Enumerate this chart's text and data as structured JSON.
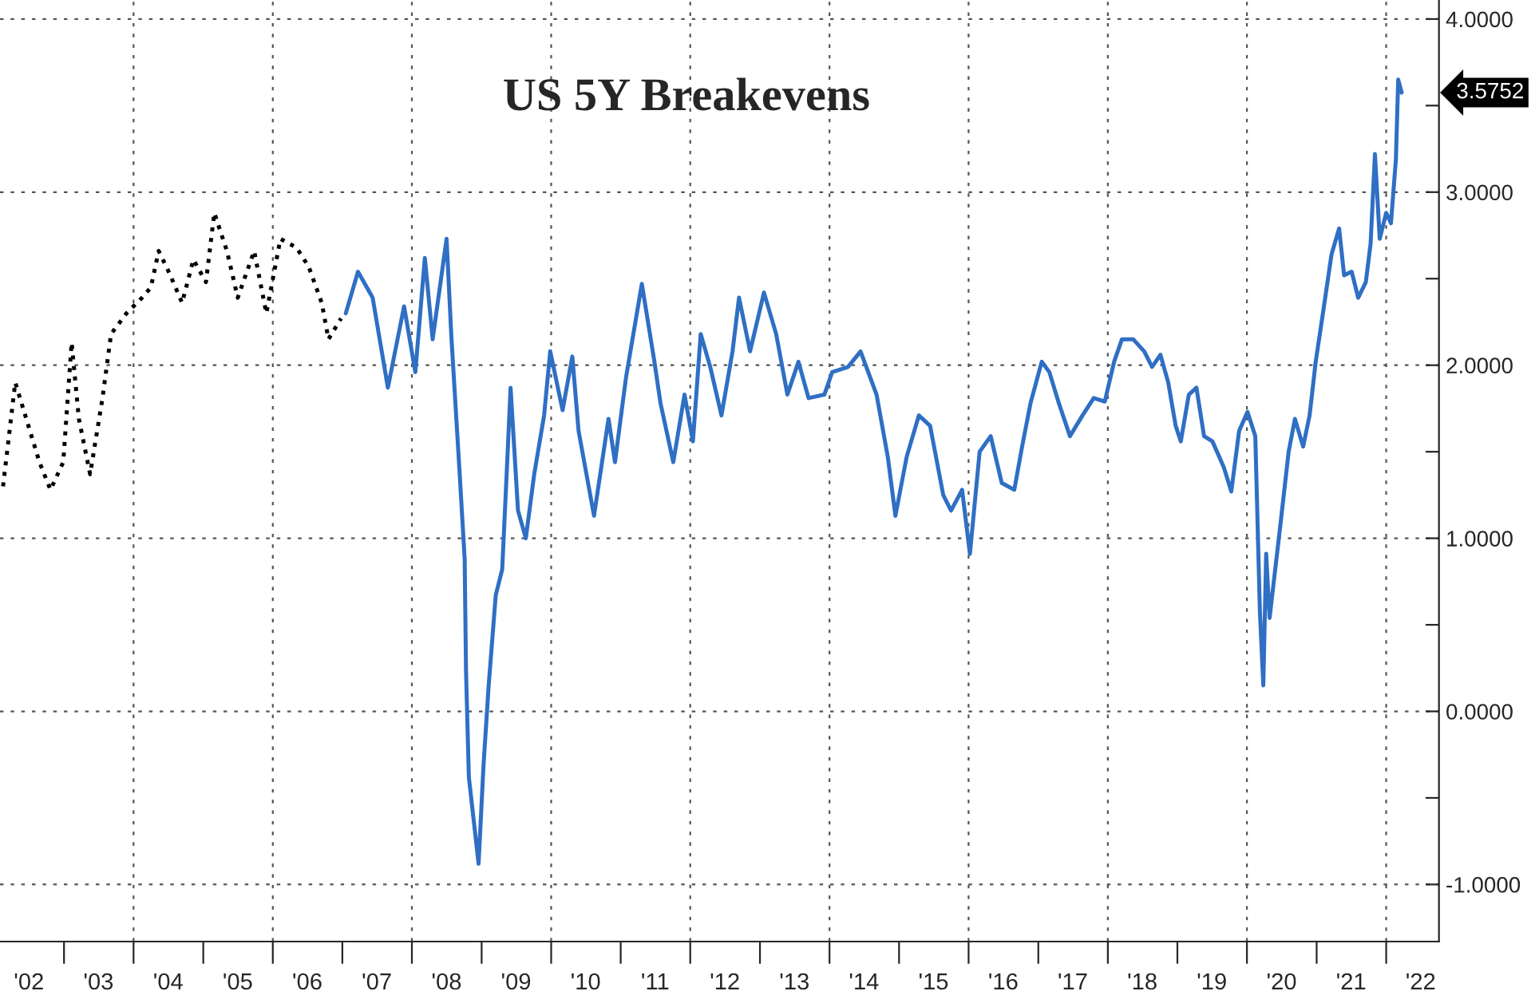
{
  "chart_data": {
    "type": "line",
    "title": "US 5Y Breakevens",
    "series": [
      {
        "color": "#000000",
        "line_style": "dotted",
        "x": [
          "2002-02-15",
          "2002-04-20",
          "2002-08-25",
          "2002-10-22",
          "2002-12-28",
          "2003-02-10",
          "2003-03-20",
          "2003-05-18",
          "2003-07-22",
          "2003-09-05",
          "2003-11-25",
          "2004-02-15",
          "2004-04-01",
          "2004-05-12",
          "2004-07-08",
          "2004-09-12",
          "2004-11-10",
          "2005-01-15",
          "2005-02-28",
          "2005-05-05",
          "2005-07-01",
          "2005-09-25",
          "2005-11-28",
          "2006-02-10",
          "2006-05-05",
          "2006-07-08",
          "2006-09-15",
          "2006-10-20",
          "2006-12-25"
        ],
        "values": [
          1.3,
          1.9,
          1.44,
          1.28,
          1.44,
          2.13,
          1.69,
          1.37,
          1.81,
          2.18,
          2.3,
          2.39,
          2.45,
          2.66,
          2.53,
          2.36,
          2.61,
          2.48,
          2.88,
          2.66,
          2.39,
          2.66,
          2.3,
          2.73,
          2.68,
          2.57,
          2.36,
          2.15,
          2.27
        ]
      },
      {
        "color": "#2f6fc4",
        "line_style": "solid",
        "x": [
          "2007-01-19",
          "2007-03-24",
          "2007-06-09",
          "2007-08-28",
          "2007-11-21",
          "2008-01-19",
          "2008-03-09",
          "2008-04-19",
          "2008-07-01",
          "2008-07-26",
          "2008-09-09",
          "2008-10-04",
          "2008-10-11",
          "2008-10-26",
          "2008-12-16",
          "2009-01-11",
          "2009-02-07",
          "2009-03-16",
          "2009-04-19",
          "2009-05-14",
          "2009-06-02",
          "2009-07-11",
          "2009-08-21",
          "2009-10-04",
          "2009-11-25",
          "2009-12-27",
          "2010-03-02",
          "2010-04-22",
          "2010-05-25",
          "2010-08-14",
          "2010-10-29",
          "2010-12-02",
          "2011-01-29",
          "2011-04-22",
          "2011-06-27",
          "2011-07-29",
          "2011-10-04",
          "2011-12-02",
          "2012-01-15",
          "2012-02-25",
          "2012-04-15",
          "2012-06-13",
          "2012-08-10",
          "2012-09-13",
          "2012-11-10",
          "2013-01-22",
          "2013-03-27",
          "2013-05-25",
          "2013-07-22",
          "2013-09-13",
          "2013-12-05",
          "2014-01-15",
          "2014-04-08",
          "2014-06-13",
          "2014-09-05",
          "2014-11-03",
          "2014-12-13",
          "2015-02-10",
          "2015-04-15",
          "2015-06-13",
          "2015-08-21",
          "2015-10-01",
          "2015-11-28",
          "2016-01-08",
          "2016-02-28",
          "2016-04-26",
          "2016-06-23",
          "2016-08-28",
          "2016-10-08",
          "2016-11-21",
          "2017-01-19",
          "2017-02-28",
          "2017-04-19",
          "2017-06-16",
          "2017-08-21",
          "2017-10-19",
          "2017-12-16",
          "2018-02-03",
          "2018-03-16",
          "2018-05-14",
          "2018-07-11",
          "2018-08-21",
          "2018-10-04",
          "2018-11-14",
          "2018-12-23",
          "2019-01-19",
          "2019-03-02",
          "2019-04-11",
          "2019-05-21",
          "2019-07-04",
          "2019-09-02",
          "2019-10-11",
          "2019-11-21",
          "2020-01-04",
          "2020-02-14",
          "2020-03-09",
          "2020-03-27",
          "2020-04-11",
          "2020-04-29",
          "2020-06-27",
          "2020-08-07",
          "2020-09-09",
          "2020-10-22",
          "2020-11-25",
          "2020-12-27",
          "2021-02-07",
          "2021-03-20",
          "2021-04-29",
          "2021-05-25",
          "2021-07-04",
          "2021-08-07",
          "2021-09-16",
          "2021-10-11",
          "2021-11-03",
          "2021-11-28",
          "2022-01-01",
          "2022-01-26",
          "2022-02-21",
          "2022-03-05",
          "2022-03-23"
        ],
        "values": [
          2.3,
          2.54,
          2.39,
          1.87,
          2.34,
          1.96,
          2.62,
          2.15,
          2.73,
          2.17,
          1.35,
          0.88,
          0.24,
          -0.38,
          -0.88,
          -0.31,
          0.15,
          0.67,
          0.82,
          1.41,
          1.87,
          1.16,
          1.0,
          1.37,
          1.71,
          2.08,
          1.74,
          2.05,
          1.62,
          1.13,
          1.69,
          1.44,
          1.93,
          2.47,
          2.02,
          1.78,
          1.44,
          1.83,
          1.56,
          2.18,
          1.99,
          1.71,
          2.08,
          2.39,
          2.08,
          2.42,
          2.18,
          1.83,
          2.02,
          1.81,
          1.83,
          1.96,
          1.99,
          2.08,
          1.83,
          1.47,
          1.13,
          1.47,
          1.71,
          1.65,
          1.25,
          1.16,
          1.28,
          0.91,
          1.5,
          1.59,
          1.32,
          1.28,
          1.53,
          1.78,
          2.02,
          1.96,
          1.78,
          1.59,
          1.71,
          1.81,
          1.79,
          2.02,
          2.15,
          2.15,
          2.08,
          1.99,
          2.06,
          1.9,
          1.65,
          1.56,
          1.83,
          1.87,
          1.59,
          1.56,
          1.41,
          1.27,
          1.62,
          1.73,
          1.59,
          0.58,
          0.15,
          0.91,
          0.54,
          1.1,
          1.5,
          1.69,
          1.53,
          1.71,
          2.02,
          2.33,
          2.64,
          2.79,
          2.52,
          2.54,
          2.39,
          2.48,
          2.7,
          3.22,
          2.73,
          2.88,
          2.82,
          3.19,
          3.65,
          3.5752
        ]
      }
    ],
    "annotations": [
      "3.5752"
    ],
    "xlim": [
      "2002-01-30",
      "2022-10-05"
    ],
    "xticks": [
      {
        "value": "2002-07",
        "label": "'02"
      },
      {
        "value": "2003-07",
        "label": "'03"
      },
      {
        "value": "2004-07",
        "label": "'04"
      },
      {
        "value": "2005-07",
        "label": "'05"
      },
      {
        "value": "2006-07",
        "label": "'06"
      },
      {
        "value": "2007-07",
        "label": "'07"
      },
      {
        "value": "2008-07",
        "label": "'08"
      },
      {
        "value": "2009-07",
        "label": "'09"
      },
      {
        "value": "2010-07",
        "label": "'10"
      },
      {
        "value": "2011-07",
        "label": "'11"
      },
      {
        "value": "2012-07",
        "label": "'12"
      },
      {
        "value": "2013-07",
        "label": "'13"
      },
      {
        "value": "2014-07",
        "label": "'14"
      },
      {
        "value": "2015-07",
        "label": "'15"
      },
      {
        "value": "2016-07",
        "label": "'16"
      },
      {
        "value": "2017-07",
        "label": "'17"
      },
      {
        "value": "2018-07",
        "label": "'18"
      },
      {
        "value": "2019-07",
        "label": "'19"
      },
      {
        "value": "2020-07",
        "label": "'20"
      },
      {
        "value": "2021-07",
        "label": "'21"
      },
      {
        "value": "2022-07",
        "label": "'22"
      },
      {
        "value": "2003",
        "label": null
      },
      {
        "value": "2004",
        "label": null
      },
      {
        "value": "2005",
        "label": null
      },
      {
        "value": "2006",
        "label": null
      },
      {
        "value": "2007",
        "label": null
      },
      {
        "value": "2008",
        "label": null
      },
      {
        "value": "2009",
        "label": null
      },
      {
        "value": "2010",
        "label": null
      },
      {
        "value": "2011",
        "label": null
      },
      {
        "value": "2012",
        "label": null
      },
      {
        "value": "2013",
        "label": null
      },
      {
        "value": "2014",
        "label": null
      },
      {
        "value": "2015",
        "label": null
      },
      {
        "value": "2016",
        "label": null
      },
      {
        "value": "2017",
        "label": null
      },
      {
        "value": "2018",
        "label": null
      },
      {
        "value": "2019",
        "label": null
      },
      {
        "value": "2020",
        "label": null
      },
      {
        "value": "2021",
        "label": null
      },
      {
        "value": "2022",
        "label": null
      }
    ],
    "ylim": [
      -1.33,
      4.11
    ],
    "yticks": [
      {
        "value": -1,
        "label": "-1.0000"
      },
      {
        "value": 0,
        "label": "0.0000"
      },
      {
        "value": 1,
        "label": "1.0000"
      },
      {
        "value": 2,
        "label": "2.0000"
      },
      {
        "value": 3,
        "label": "3.0000"
      },
      {
        "value": 4,
        "label": "4.0000"
      },
      {
        "value": -0.5,
        "label": null
      },
      {
        "value": 0.5,
        "label": null
      },
      {
        "value": 1.5,
        "label": null
      },
      {
        "value": 2.5,
        "label": null
      },
      {
        "value": 3.5,
        "label": null
      }
    ],
    "grid": true,
    "legend": false
  }
}
